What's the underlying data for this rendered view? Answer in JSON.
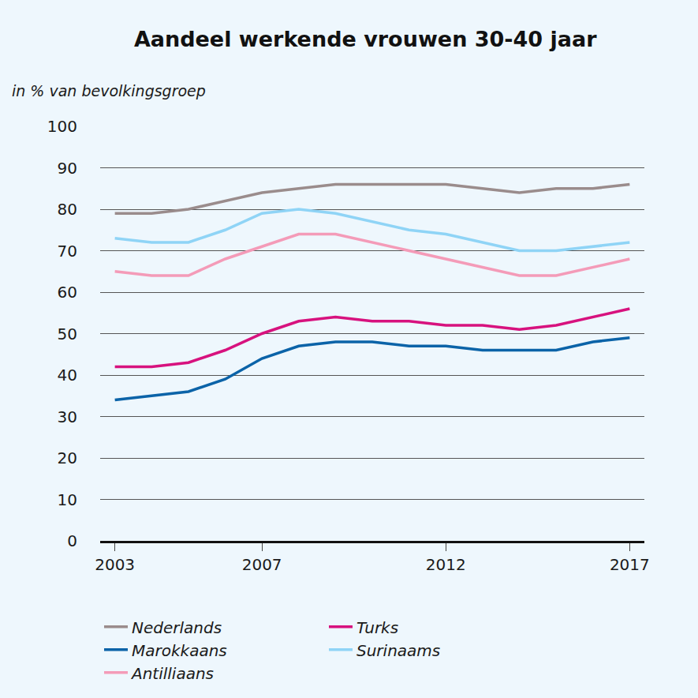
{
  "chart_data": {
    "type": "line",
    "title": "Aandeel werkende vrouwen 30-40 jaar",
    "subtitle": "in % van bevolkingsgroep",
    "x": [
      2003,
      2004,
      2005,
      2006,
      2007,
      2008,
      2009,
      2010,
      2011,
      2012,
      2013,
      2014,
      2015,
      2016,
      2017
    ],
    "series": [
      {
        "name": "Nederlands",
        "color": "#9a8c8c",
        "values": [
          79,
          79,
          80,
          82,
          84,
          85,
          86,
          86,
          86,
          86,
          85,
          84,
          85,
          85,
          86
        ]
      },
      {
        "name": "Turks",
        "color": "#d7127e",
        "values": [
          42,
          42,
          43,
          46,
          50,
          53,
          54,
          53,
          53,
          52,
          52,
          51,
          52,
          54,
          56
        ]
      },
      {
        "name": "Marokkaans",
        "color": "#0b63a8",
        "values": [
          34,
          35,
          36,
          39,
          44,
          47,
          48,
          48,
          47,
          47,
          46,
          46,
          46,
          48,
          49
        ]
      },
      {
        "name": "Surinaams",
        "color": "#8fd4f6",
        "values": [
          73,
          72,
          72,
          75,
          79,
          80,
          79,
          77,
          75,
          74,
          72,
          70,
          70,
          71,
          72
        ]
      },
      {
        "name": "Antilliaans",
        "color": "#f49bb8",
        "values": [
          65,
          64,
          64,
          68,
          71,
          74,
          74,
          72,
          70,
          68,
          66,
          64,
          64,
          66,
          68
        ]
      }
    ],
    "xlim": [
      2002.6,
      2017.4
    ],
    "xticks": [
      2003,
      2007,
      2012,
      2017
    ],
    "ylim": [
      0,
      100
    ],
    "yticks": [
      0,
      10,
      20,
      30,
      40,
      50,
      60,
      70,
      80,
      90,
      100
    ],
    "grid": true,
    "legend": "bottom"
  }
}
